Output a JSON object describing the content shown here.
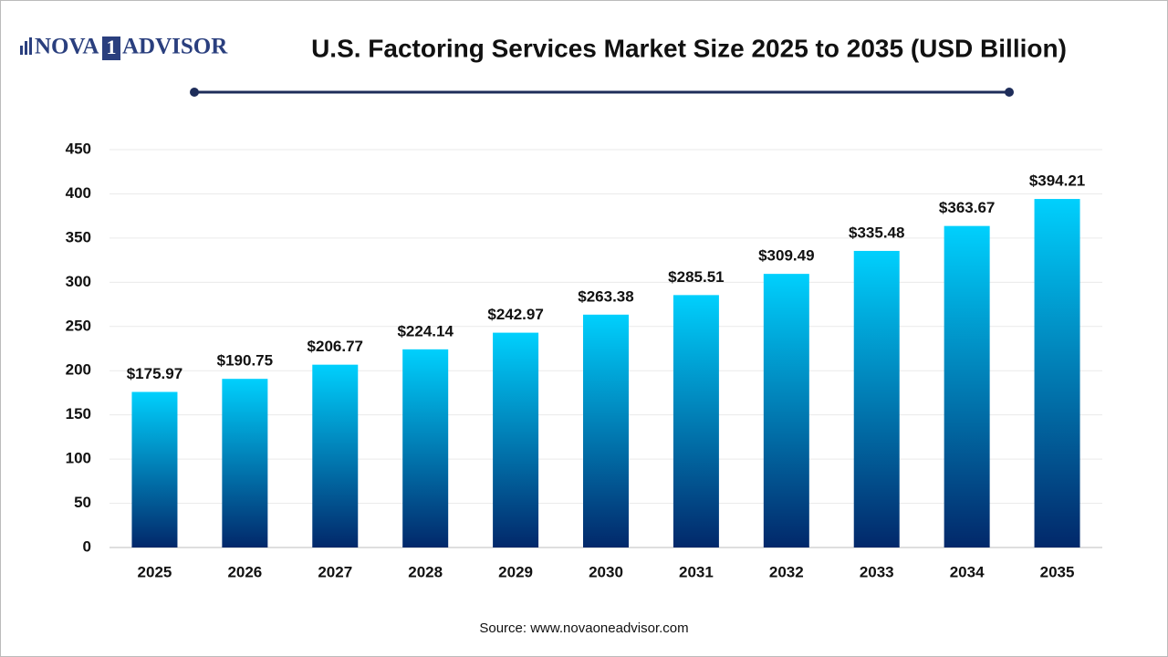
{
  "chart_data": {
    "type": "bar",
    "title": "U.S. Factoring Services Market Size 2025 to 2035 (USD Billion)",
    "logo": {
      "left": "NOVA",
      "mark": "1",
      "right": "ADVISOR"
    },
    "source": "Source: www.novaoneadvisor.com",
    "categories": [
      "2025",
      "2026",
      "2027",
      "2028",
      "2029",
      "2030",
      "2031",
      "2032",
      "2033",
      "2034",
      "2035"
    ],
    "values": [
      175.97,
      190.75,
      206.77,
      224.14,
      242.97,
      263.38,
      285.51,
      309.49,
      335.48,
      363.67,
      394.21
    ],
    "value_labels": [
      "$175.97",
      "$190.75",
      "$206.77",
      "$224.14",
      "$242.97",
      "$263.38",
      "$285.51",
      "$309.49",
      "$335.48",
      "$363.67",
      "$394.21"
    ],
    "gradient": [
      "#00d0fd",
      "#02286a"
    ],
    "ylim": [
      0,
      450
    ],
    "yticks": [
      0,
      50,
      100,
      150,
      200,
      250,
      300,
      350,
      400,
      450
    ],
    "grid": true
  }
}
